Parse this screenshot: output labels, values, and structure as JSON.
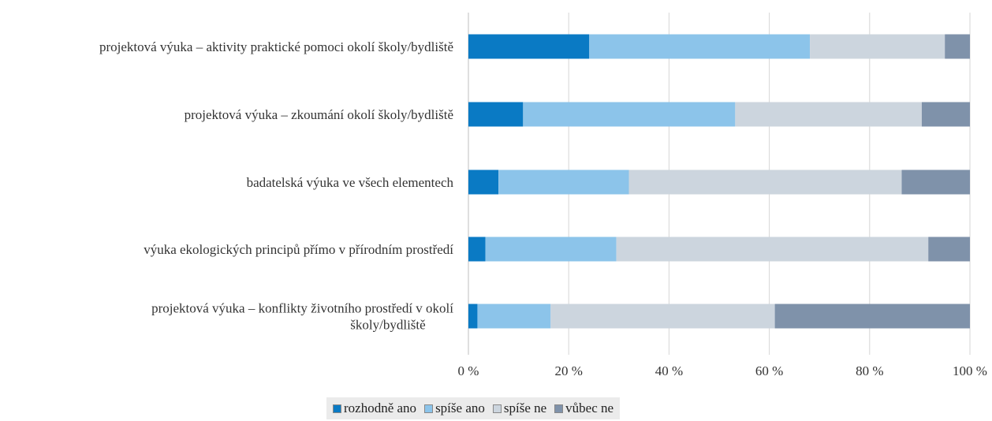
{
  "chart_data": {
    "type": "bar",
    "orientation": "horizontal",
    "stacked": true,
    "categories": [
      [
        "projektová výuka – aktivity praktické pomoci okolí školy/bydliště"
      ],
      [
        "projektová výuka – zkoumání okolí školy/bydliště"
      ],
      [
        "badatelská výuka ve všech elementech"
      ],
      [
        "výuka ekologických principů přímo v přírodním prostředí"
      ],
      [
        "projektová výuka – konflikty životního prostředí v okolí",
        "školy/bydliště"
      ]
    ],
    "series": [
      {
        "name": "rozhodně ano",
        "color": "#0a7ac4",
        "values": [
          24.1,
          10.9,
          6.0,
          3.4,
          1.8
        ]
      },
      {
        "name": "spíše ano",
        "color": "#8cc4ea",
        "values": [
          44.0,
          42.3,
          26.0,
          26.1,
          14.6
        ]
      },
      {
        "name": "spíše ne",
        "color": "#ccd5de",
        "values": [
          26.9,
          37.2,
          54.4,
          62.2,
          44.7
        ]
      },
      {
        "name": "vůbec ne",
        "color": "#7f92aa",
        "values": [
          5.0,
          9.6,
          13.6,
          8.3,
          38.9
        ]
      }
    ],
    "xlim": [
      0,
      100
    ],
    "xticks": [
      "0 %",
      "20 %",
      "40 %",
      "60 %",
      "80 %",
      "100 %"
    ],
    "grid": true,
    "legend_position": "bottom"
  }
}
